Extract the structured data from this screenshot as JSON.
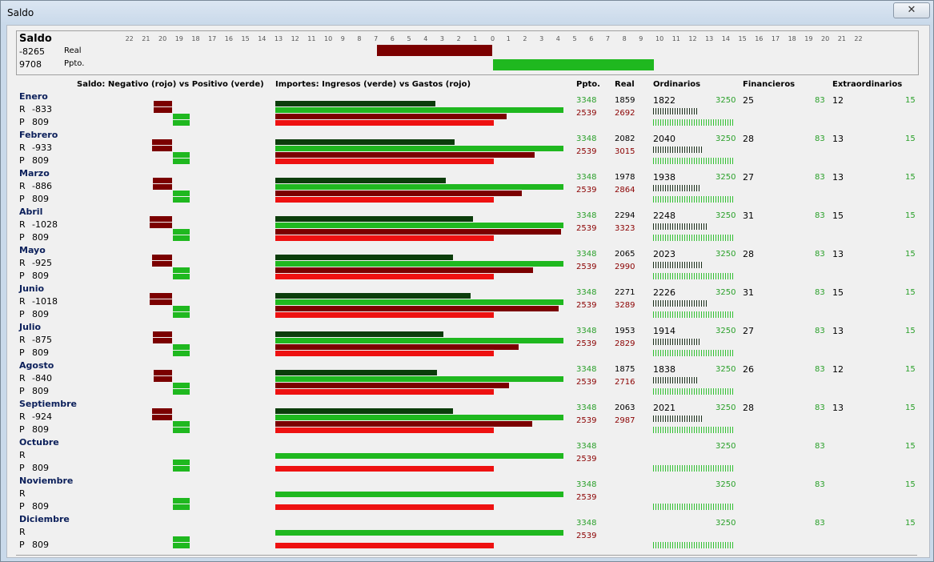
{
  "window": {
    "title": "Saldo",
    "close_label": "✕"
  },
  "summary": {
    "title": "Saldo",
    "real_value": "-8265",
    "real_label": "Real",
    "ppto_value": "9708",
    "ppto_label": "Ppto.",
    "scale_left": [
      "22",
      "21",
      "20",
      "19",
      "18",
      "17",
      "16",
      "15",
      "14",
      "13",
      "12",
      "11",
      "10",
      "9",
      "8",
      "7",
      "6",
      "5",
      "4",
      "3",
      "2",
      "1"
    ],
    "scale_zero": "0",
    "scale_right": [
      "1",
      "2",
      "3",
      "4",
      "5",
      "6",
      "7",
      "8",
      "9",
      "10",
      "11",
      "12",
      "13",
      "14",
      "15",
      "16",
      "17",
      "18",
      "19",
      "20",
      "21",
      "22"
    ],
    "real_bar_fraction": 0.83,
    "ppto_bar_fraction": 0.97
  },
  "headers": {
    "saldo": "Saldo: Negativo (rojo) vs Positivo (verde)",
    "importes": "Importes: Ingresos (verde) vs Gastos (rojo)",
    "ppto": "Ppto.",
    "real": "Real",
    "ordinarios": "Ordinarios",
    "financieros": "Financieros",
    "extraordinarios": "Extraordinarios"
  },
  "labels": {
    "r": "R",
    "p": "P"
  },
  "colors": {
    "dark_green": "#0b3d0b",
    "green": "#1fb81f",
    "dark_red": "#7b0000",
    "red": "#ee1111"
  },
  "months": [
    {
      "name": "Enero",
      "r_saldo": "-833",
      "p_saldo": "809",
      "ppto_in": "3348",
      "ppto_out": "2539",
      "real_in": "1859",
      "real_out": "2692",
      "ord_real": "1822",
      "ord_ppto": "3250",
      "fin_real": "25",
      "fin_ppto": "83",
      "ext_real": "12",
      "ext_ppto": "15"
    },
    {
      "name": "Febrero",
      "r_saldo": "-933",
      "p_saldo": "809",
      "ppto_in": "3348",
      "ppto_out": "2539",
      "real_in": "2082",
      "real_out": "3015",
      "ord_real": "2040",
      "ord_ppto": "3250",
      "fin_real": "28",
      "fin_ppto": "83",
      "ext_real": "13",
      "ext_ppto": "15"
    },
    {
      "name": "Marzo",
      "r_saldo": "-886",
      "p_saldo": "809",
      "ppto_in": "3348",
      "ppto_out": "2539",
      "real_in": "1978",
      "real_out": "2864",
      "ord_real": "1938",
      "ord_ppto": "3250",
      "fin_real": "27",
      "fin_ppto": "83",
      "ext_real": "13",
      "ext_ppto": "15"
    },
    {
      "name": "Abril",
      "r_saldo": "-1028",
      "p_saldo": "809",
      "ppto_in": "3348",
      "ppto_out": "2539",
      "real_in": "2294",
      "real_out": "3323",
      "ord_real": "2248",
      "ord_ppto": "3250",
      "fin_real": "31",
      "fin_ppto": "83",
      "ext_real": "15",
      "ext_ppto": "15"
    },
    {
      "name": "Mayo",
      "r_saldo": "-925",
      "p_saldo": "809",
      "ppto_in": "3348",
      "ppto_out": "2539",
      "real_in": "2065",
      "real_out": "2990",
      "ord_real": "2023",
      "ord_ppto": "3250",
      "fin_real": "28",
      "fin_ppto": "83",
      "ext_real": "13",
      "ext_ppto": "15"
    },
    {
      "name": "Junio",
      "r_saldo": "-1018",
      "p_saldo": "809",
      "ppto_in": "3348",
      "ppto_out": "2539",
      "real_in": "2271",
      "real_out": "3289",
      "ord_real": "2226",
      "ord_ppto": "3250",
      "fin_real": "31",
      "fin_ppto": "83",
      "ext_real": "15",
      "ext_ppto": "15"
    },
    {
      "name": "Julio",
      "r_saldo": "-875",
      "p_saldo": "809",
      "ppto_in": "3348",
      "ppto_out": "2539",
      "real_in": "1953",
      "real_out": "2829",
      "ord_real": "1914",
      "ord_ppto": "3250",
      "fin_real": "27",
      "fin_ppto": "83",
      "ext_real": "13",
      "ext_ppto": "15"
    },
    {
      "name": "Agosto",
      "r_saldo": "-840",
      "p_saldo": "809",
      "ppto_in": "3348",
      "ppto_out": "2539",
      "real_in": "1875",
      "real_out": "2716",
      "ord_real": "1838",
      "ord_ppto": "3250",
      "fin_real": "26",
      "fin_ppto": "83",
      "ext_real": "12",
      "ext_ppto": "15"
    },
    {
      "name": "Septiembre",
      "r_saldo": "-924",
      "p_saldo": "809",
      "ppto_in": "3348",
      "ppto_out": "2539",
      "real_in": "2063",
      "real_out": "2987",
      "ord_real": "2021",
      "ord_ppto": "3250",
      "fin_real": "28",
      "fin_ppto": "83",
      "ext_real": "13",
      "ext_ppto": "15"
    },
    {
      "name": "Octubre",
      "r_saldo": "",
      "p_saldo": "809",
      "ppto_in": "3348",
      "ppto_out": "2539",
      "real_in": "",
      "real_out": "",
      "ord_real": "",
      "ord_ppto": "3250",
      "fin_real": "",
      "fin_ppto": "83",
      "ext_real": "",
      "ext_ppto": "15"
    },
    {
      "name": "Noviembre",
      "r_saldo": "",
      "p_saldo": "809",
      "ppto_in": "3348",
      "ppto_out": "2539",
      "real_in": "",
      "real_out": "",
      "ord_real": "",
      "ord_ppto": "3250",
      "fin_real": "",
      "fin_ppto": "83",
      "ext_real": "",
      "ext_ppto": "15"
    },
    {
      "name": "Diciembre",
      "r_saldo": "",
      "p_saldo": "809",
      "ppto_in": "3348",
      "ppto_out": "2539",
      "real_in": "",
      "real_out": "",
      "ord_real": "",
      "ord_ppto": "3250",
      "fin_real": "",
      "fin_ppto": "83",
      "ext_real": "",
      "ext_ppto": "15"
    }
  ]
}
